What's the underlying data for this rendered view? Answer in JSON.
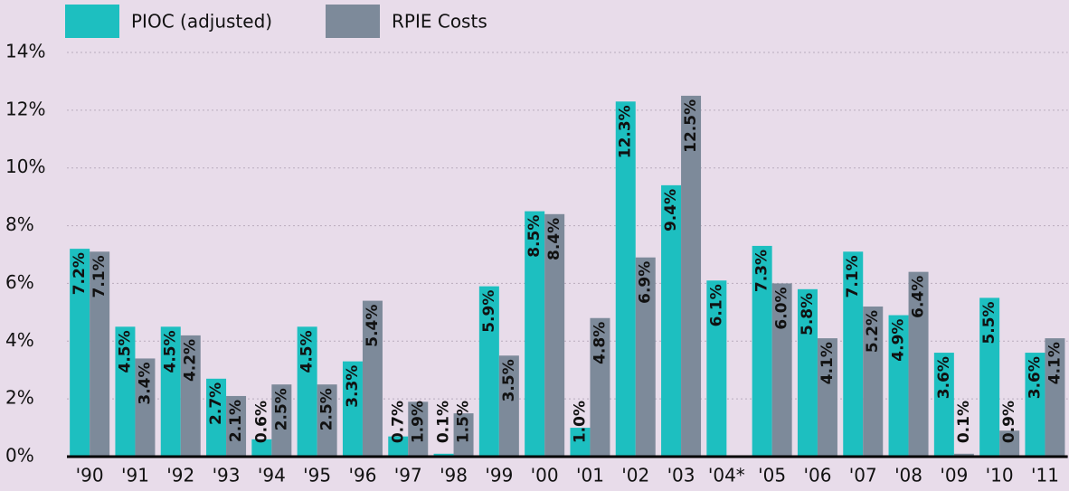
{
  "chart_data": {
    "type": "bar",
    "categories": [
      "'90",
      "'91",
      "'92",
      "'93",
      "'94",
      "'95",
      "'96",
      "'97",
      "'98",
      "'99",
      "'00",
      "'01",
      "'02",
      "'03",
      "'04*",
      "'05",
      "'06",
      "'07",
      "'08",
      "'09",
      "'10",
      "'11"
    ],
    "series": [
      {
        "name": "PIOC (adjusted)",
        "color": "#1dbfc0",
        "values": [
          7.2,
          4.5,
          4.5,
          2.7,
          0.6,
          4.5,
          3.3,
          0.7,
          0.1,
          5.9,
          8.5,
          1.0,
          12.3,
          9.4,
          6.1,
          7.3,
          5.8,
          7.1,
          4.9,
          3.6,
          5.5,
          3.6
        ],
        "value_labels": [
          "7.2%",
          "4.5%",
          "4.5%",
          "2.7%",
          "0.6%",
          "4.5%",
          "3.3%",
          "0.7%",
          "0.1%",
          "5.9%",
          "8.5%",
          "1.0%",
          "12.3%",
          "9.4%",
          "6.1%",
          "7.3%",
          "5.8%",
          "7.1%",
          "4.9%",
          "3.6%",
          "5.5%",
          "3.6%"
        ]
      },
      {
        "name": "RPIE Costs",
        "color": "#7d8a9a",
        "values": [
          7.1,
          3.4,
          4.2,
          2.1,
          2.5,
          2.5,
          5.4,
          1.9,
          1.5,
          3.5,
          8.4,
          4.8,
          6.9,
          12.5,
          null,
          6.0,
          4.1,
          5.2,
          6.4,
          0.1,
          0.9,
          4.1
        ],
        "value_labels": [
          "7.1%",
          "3.4%",
          "4.2%",
          "2.1%",
          "2.5%",
          "2.5%",
          "5.4%",
          "1.9%",
          "1.5%",
          "3.5%",
          "8.4%",
          "4.8%",
          "6.9%",
          "12.5%",
          null,
          "6.0%",
          "4.1%",
          "5.2%",
          "6.4%",
          "0.1%",
          "0.9%",
          "4.1%"
        ]
      }
    ],
    "ylim": [
      0,
      14
    ],
    "yticks": [
      {
        "value": 0,
        "label": "0%"
      },
      {
        "value": 2,
        "label": "2%"
      },
      {
        "value": 4,
        "label": "4%"
      },
      {
        "value": 6,
        "label": "6%"
      },
      {
        "value": 8,
        "label": "8%"
      },
      {
        "value": 10,
        "label": "10%"
      },
      {
        "value": 12,
        "label": "12%"
      },
      {
        "value": 14,
        "label": "14%"
      }
    ],
    "grid": true,
    "legend": "top-left"
  }
}
